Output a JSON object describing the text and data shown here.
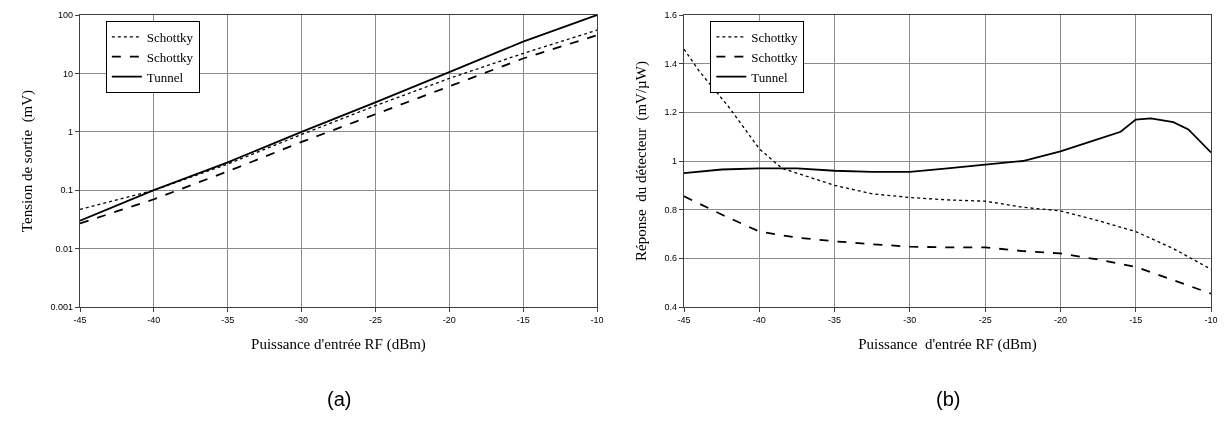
{
  "chart_data": [
    {
      "type": "line",
      "xlabel": "Puissance d'entrée RF (dBm)",
      "ylabel": "Tension de sortie  (mV)",
      "x": [
        -45,
        -40,
        -35,
        -30,
        -25,
        -20,
        -15,
        -10
      ],
      "series": [
        {
          "name": "Schottky",
          "color": "#000000",
          "line_style": "dotted",
          "values": [
            0.047,
            0.1,
            0.28,
            0.9,
            2.8,
            8.2,
            22,
            55
          ]
        },
        {
          "name": "Schottky",
          "color": "#000000",
          "line_style": "dashed",
          "values": [
            0.027,
            0.07,
            0.21,
            0.67,
            2.0,
            6,
            18,
            45
          ]
        },
        {
          "name": "Tunnel",
          "color": "#000000",
          "line_style": "solid",
          "values": [
            0.03,
            0.1,
            0.3,
            1.0,
            3.2,
            10.5,
            35,
            100
          ]
        }
      ],
      "log": "y",
      "xlim": [
        -45,
        -10
      ],
      "xticks": [
        -45,
        -40,
        -35,
        -30,
        -25,
        -20,
        -15,
        -10
      ],
      "ylim": [
        0.001,
        100
      ],
      "yticks": [
        0.001,
        0.01,
        0.1,
        1,
        10,
        100
      ],
      "grid": true,
      "legend": "top left",
      "marker": "none",
      "annotations": [
        "(a)"
      ]
    },
    {
      "type": "line",
      "xlabel": "Puissance  d'entrée RF (dBm)",
      "ylabel": "Réponse  du détecteur  (mV/µW)",
      "series": [
        {
          "name": "Schottky",
          "color": "#000000",
          "line_style": "dotted",
          "x": [
            -45,
            -44,
            -42,
            -40,
            -38.5,
            -37,
            -35,
            -32.5,
            -30,
            -27.5,
            -25,
            -22.5,
            -20,
            -17.5,
            -15,
            -12.5,
            -10
          ],
          "values": [
            1.46,
            1.37,
            1.22,
            1.05,
            0.97,
            0.94,
            0.9,
            0.865,
            0.85,
            0.84,
            0.835,
            0.81,
            0.795,
            0.755,
            0.71,
            0.64,
            0.555
          ]
        },
        {
          "name": "Schottky",
          "color": "#000000",
          "line_style": "dashed",
          "x": [
            -45,
            -42.5,
            -40,
            -37.5,
            -35,
            -32.5,
            -30,
            -27.5,
            -25,
            -22.5,
            -20,
            -17.5,
            -15,
            -12.5,
            -10
          ],
          "values": [
            0.855,
            0.78,
            0.71,
            0.685,
            0.67,
            0.658,
            0.648,
            0.645,
            0.645,
            0.63,
            0.62,
            0.595,
            0.565,
            0.51,
            0.455
          ]
        },
        {
          "name": "Tunnel",
          "color": "#000000",
          "line_style": "solid",
          "x": [
            -45,
            -42.5,
            -40,
            -37.5,
            -35,
            -32.5,
            -30,
            -27.5,
            -25,
            -22.5,
            -20,
            -17.5,
            -16,
            -15,
            -14,
            -12.5,
            -11.5,
            -10
          ],
          "values": [
            0.95,
            0.965,
            0.97,
            0.97,
            0.96,
            0.955,
            0.955,
            0.97,
            0.985,
            1.0,
            1.04,
            1.09,
            1.12,
            1.17,
            1.175,
            1.16,
            1.13,
            1.035
          ]
        }
      ],
      "xlim": [
        -45,
        -10
      ],
      "xticks": [
        -45,
        -40,
        -35,
        -30,
        -25,
        -20,
        -15,
        -10
      ],
      "ylim": [
        0.4,
        1.6
      ],
      "yticks": [
        0.4,
        0.6,
        0.8,
        1,
        1.2,
        1.4,
        1.6
      ],
      "grid": true,
      "legend": "top left",
      "marker": "none",
      "annotations": [
        "(b)"
      ]
    }
  ]
}
